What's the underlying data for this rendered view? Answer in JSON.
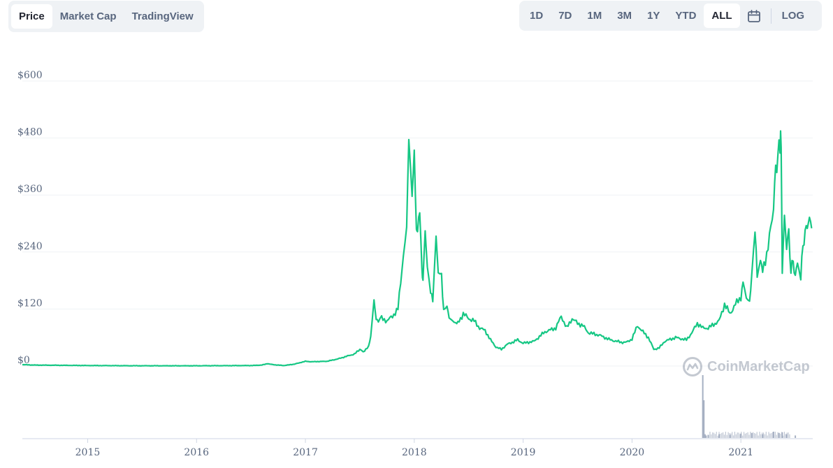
{
  "tabs_left": [
    {
      "label": "Price",
      "active": true
    },
    {
      "label": "Market Cap",
      "active": false
    },
    {
      "label": "TradingView",
      "active": false
    }
  ],
  "tabs_right": [
    {
      "label": "1D",
      "active": false
    },
    {
      "label": "7D",
      "active": false
    },
    {
      "label": "1M",
      "active": false
    },
    {
      "label": "3M",
      "active": false
    },
    {
      "label": "1Y",
      "active": false
    },
    {
      "label": "YTD",
      "active": false
    },
    {
      "label": "ALL",
      "active": true
    }
  ],
  "calendar_icon": "calendar-icon",
  "log_label": "LOG",
  "watermark": {
    "text": "CoinMarketCap",
    "icon": "coinmarketcap-logo-icon"
  },
  "colors": {
    "line": "#16c784",
    "grid": "#eff2f5",
    "volume": "#a6b0c3",
    "axis_text": "#58667e"
  },
  "chart_data": {
    "type": "line",
    "title": "",
    "xlabel": "",
    "ylabel": "",
    "y_ticks": [
      "$0",
      "$120",
      "$240",
      "$360",
      "$480",
      "$600"
    ],
    "y_tick_values": [
      0,
      120,
      240,
      360,
      480,
      600
    ],
    "x_ticks": [
      "2015",
      "2016",
      "2017",
      "2018",
      "2019",
      "2020",
      "2021"
    ],
    "x_tick_values": [
      2015,
      2016,
      2017,
      2018,
      2019,
      2020,
      2021
    ],
    "ylim": [
      0,
      600
    ],
    "xlim": [
      2014.4,
      2021.66
    ],
    "grid": true,
    "series": [
      {
        "name": "",
        "x": [
          2014.4,
          2014.5,
          2015.0,
          2015.5,
          2016.0,
          2016.5,
          2016.6,
          2016.65,
          2016.7,
          2016.8,
          2016.9,
          2017.0,
          2017.05,
          2017.2,
          2017.3,
          2017.4,
          2017.45,
          2017.5,
          2017.53,
          2017.58,
          2017.6,
          2017.63,
          2017.65,
          2017.67,
          2017.7,
          2017.75,
          2017.8,
          2017.85,
          2017.9,
          2017.93,
          2017.95,
          2017.98,
          2018.0,
          2018.02,
          2018.03,
          2018.05,
          2018.07,
          2018.08,
          2018.1,
          2018.12,
          2018.15,
          2018.17,
          2018.2,
          2018.22,
          2018.25,
          2018.27,
          2018.3,
          2018.32,
          2018.35,
          2018.38,
          2018.4,
          2018.45,
          2018.5,
          2018.55,
          2018.6,
          2018.65,
          2018.7,
          2018.75,
          2018.8,
          2018.85,
          2018.9,
          2018.95,
          2019.0,
          2019.1,
          2019.2,
          2019.3,
          2019.35,
          2019.4,
          2019.45,
          2019.5,
          2019.55,
          2019.6,
          2019.7,
          2019.8,
          2019.9,
          2019.95,
          2020.0,
          2020.05,
          2020.1,
          2020.15,
          2020.2,
          2020.25,
          2020.3,
          2020.4,
          2020.5,
          2020.55,
          2020.6,
          2020.65,
          2020.7,
          2020.8,
          2020.85,
          2020.9,
          2020.95,
          2021.0,
          2021.02,
          2021.05,
          2021.08,
          2021.1,
          2021.13,
          2021.15,
          2021.18,
          2021.2,
          2021.25,
          2021.3,
          2021.32,
          2021.34,
          2021.36,
          2021.37,
          2021.38,
          2021.4,
          2021.42,
          2021.44,
          2021.46,
          2021.48,
          2021.5,
          2021.52,
          2021.55,
          2021.57,
          2021.59,
          2021.61,
          2021.63,
          2021.65
        ],
        "values": [
          3,
          2,
          1,
          0.5,
          0.5,
          1,
          2,
          5,
          3,
          1,
          4,
          10,
          9,
          10,
          15,
          22,
          25,
          35,
          30,
          40,
          65,
          140,
          100,
          90,
          100,
          95,
          105,
          120,
          235,
          310,
          460,
          360,
          440,
          300,
          270,
          340,
          200,
          180,
          290,
          200,
          150,
          140,
          270,
          200,
          190,
          120,
          130,
          100,
          100,
          95,
          90,
          110,
          100,
          95,
          80,
          75,
          55,
          40,
          35,
          45,
          50,
          55,
          48,
          52,
          72,
          80,
          105,
          80,
          100,
          90,
          85,
          70,
          65,
          55,
          50,
          50,
          57,
          85,
          72,
          60,
          35,
          38,
          52,
          60,
          55,
          70,
          90,
          80,
          80,
          95,
          130,
          110,
          130,
          145,
          170,
          140,
          140,
          185,
          280,
          190,
          220,
          200,
          250,
          330,
          420,
          440,
          460,
          480,
          190,
          320,
          250,
          280,
          200,
          220,
          190,
          215,
          180,
          260,
          275,
          300,
          310,
          290
        ]
      }
    ],
    "volume_series": {
      "x": [
        2014.4,
        2016.0,
        2020.55,
        2020.64,
        2020.65,
        2020.66,
        2020.67,
        2020.68,
        2020.7,
        2020.8,
        2020.9,
        2021.0,
        2021.1,
        2021.2,
        2021.3,
        2021.35,
        2021.38,
        2021.42,
        2021.5,
        2021.6
      ],
      "values": [
        0,
        0,
        0,
        0,
        1.0,
        0.6,
        0.06,
        0.04,
        0.05,
        0.06,
        0.05,
        0.07,
        0.08,
        0.06,
        0.1,
        0.08,
        0.09,
        0.06,
        0.04,
        0
      ]
    }
  }
}
